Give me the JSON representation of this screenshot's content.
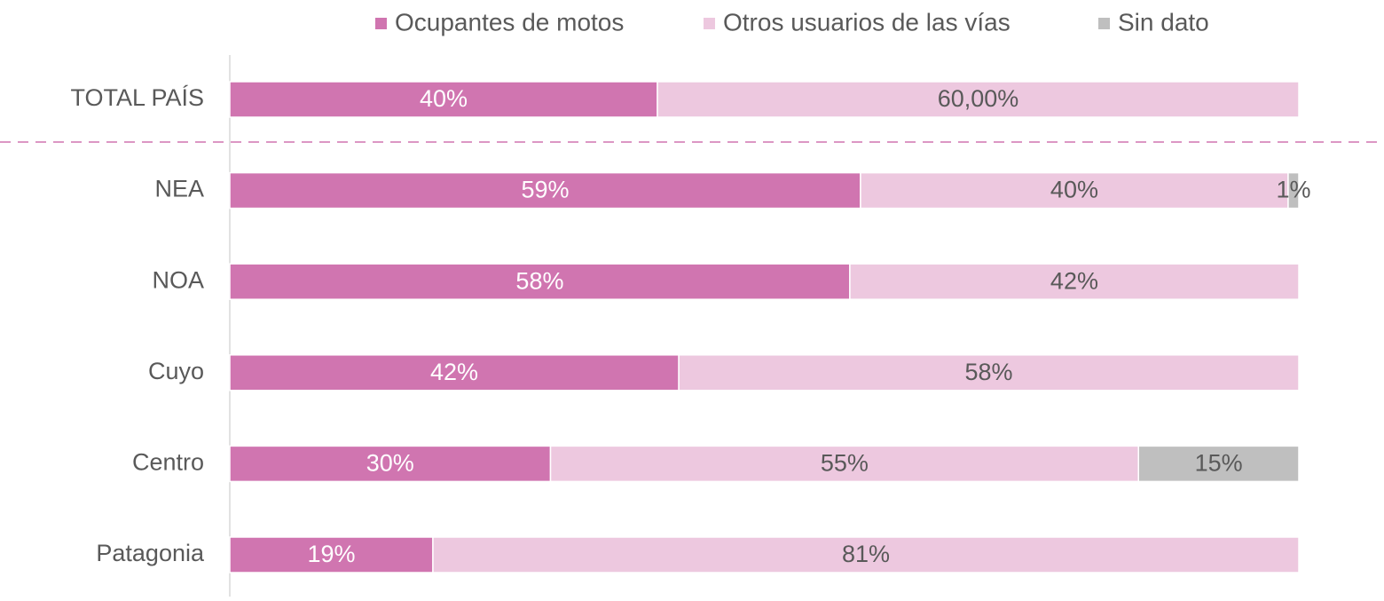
{
  "chart_data": {
    "type": "stacked_bar_horizontal",
    "categories": [
      "TOTAL PAÍS",
      "NEA",
      "NOA",
      "Cuyo",
      "Centro",
      "Patagonia"
    ],
    "series": [
      {
        "name": "Ocupantes de motos",
        "color": "#d075b0",
        "values": [
          40,
          59,
          58,
          42,
          30,
          19
        ],
        "value_labels": [
          "40%",
          "59%",
          "58%",
          "42%",
          "30%",
          "19%"
        ]
      },
      {
        "name": "Otros usuarios de las vías",
        "color": "#edc8df",
        "values": [
          60,
          40,
          42,
          58,
          55,
          81
        ],
        "value_labels": [
          "60,00%",
          "40%",
          "42%",
          "58%",
          "55%",
          "81%"
        ]
      },
      {
        "name": "Sin dato",
        "color": "#bfbfbf",
        "values": [
          null,
          1,
          null,
          null,
          15,
          null
        ],
        "value_labels": [
          null,
          "1%",
          null,
          null,
          "15%",
          null
        ]
      }
    ],
    "xlim": [
      0,
      100
    ],
    "legend": "top"
  }
}
